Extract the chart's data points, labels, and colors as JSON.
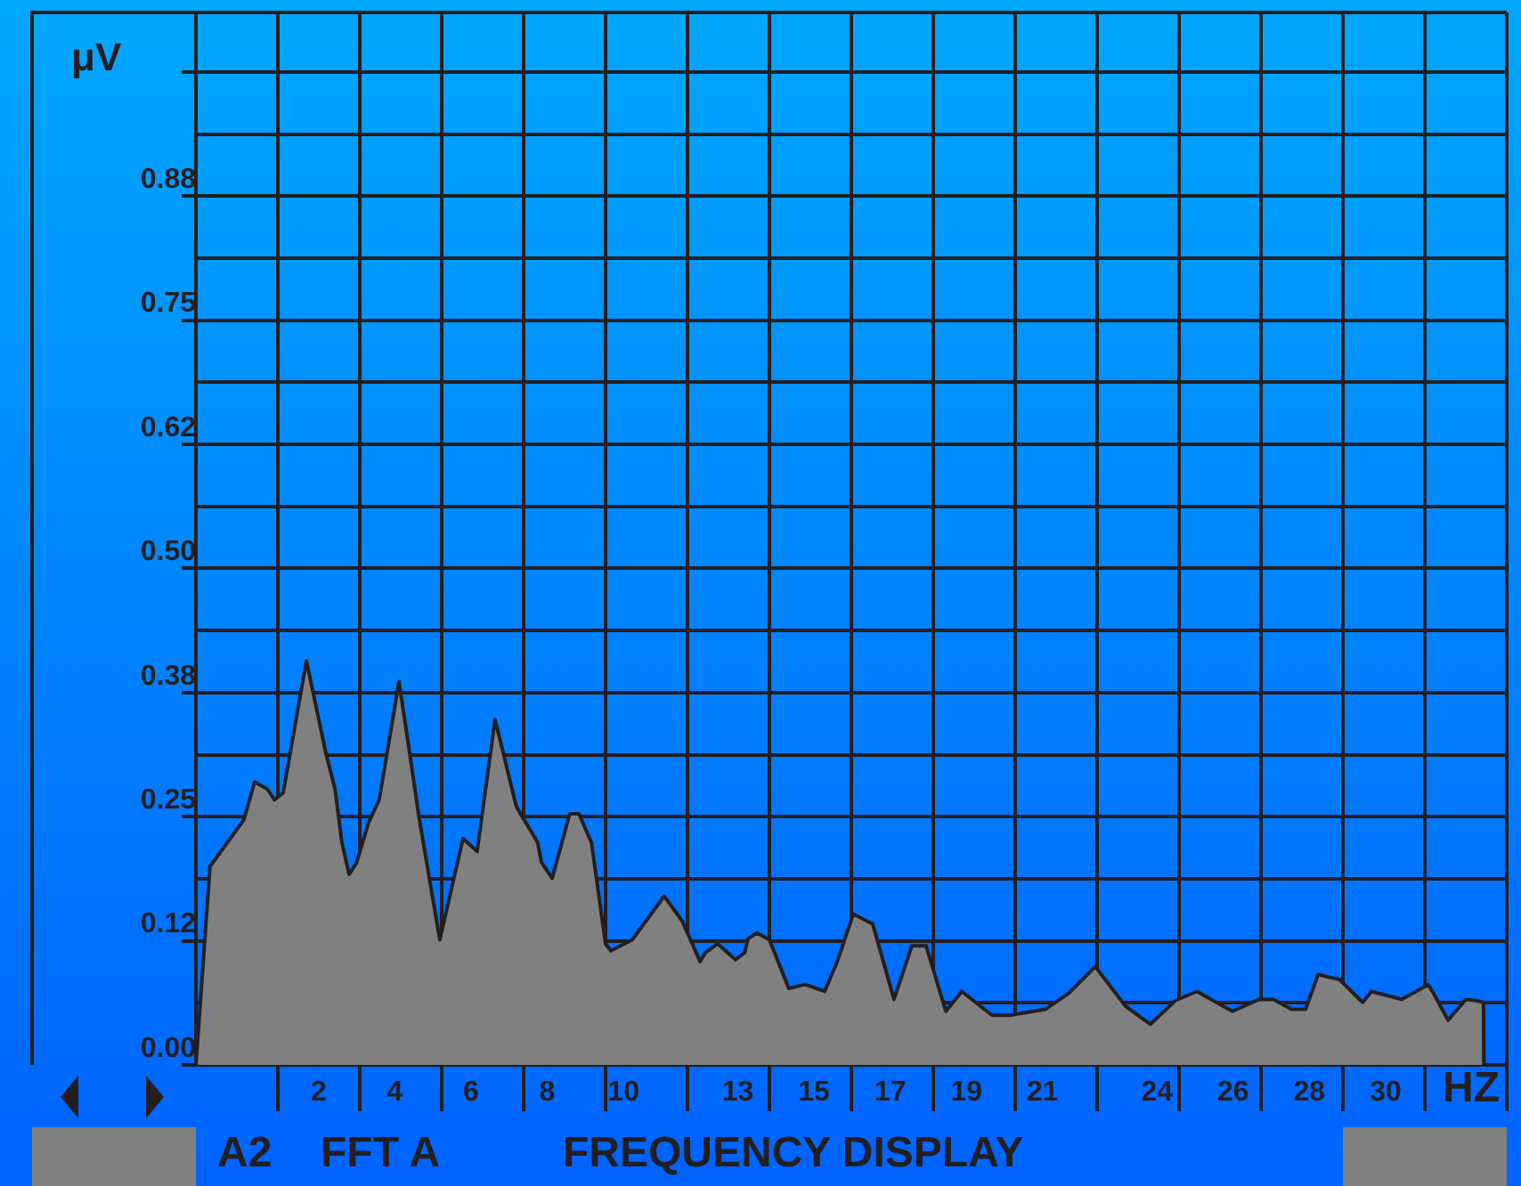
{
  "chart_data": {
    "type": "area",
    "ylabel": "μV",
    "xlabel": "HZ",
    "grid": true,
    "xlim": [
      -1.22,
      33.18
    ],
    "xticks": [
      {
        "value": 0.93,
        "label": null
      },
      2,
      {
        "value": 3.08,
        "label": null
      },
      4,
      {
        "value": 5.23,
        "label": null
      },
      6,
      {
        "value": 7.38,
        "label": null
      },
      8,
      {
        "value": 9.53,
        "label": null
      },
      10,
      {
        "value": 11.68,
        "label": null
      },
      13,
      {
        "value": 13.83,
        "label": null
      },
      15,
      {
        "value": 15.98,
        "label": null
      },
      17,
      {
        "value": 18.13,
        "label": null
      },
      19,
      {
        "value": 20.28,
        "label": null
      },
      21,
      {
        "value": 22.43,
        "label": null
      },
      24,
      {
        "value": 24.58,
        "label": null
      },
      26,
      {
        "value": 26.73,
        "label": null
      },
      28,
      {
        "value": 28.88,
        "label": null
      },
      30,
      {
        "value": 31.03,
        "label": null
      },
      {
        "value": 33.18,
        "label": null
      }
    ],
    "ylim": [
      0,
      1.06
    ],
    "yticks": [
      {
        "value": 0,
        "label": "0.00"
      },
      {
        "value": 0.0625,
        "label": null
      },
      {
        "value": 0.125,
        "label": "0.12"
      },
      {
        "value": 0.1875,
        "label": null
      },
      {
        "value": 0.25,
        "label": "0.25"
      },
      {
        "value": 0.3125,
        "label": null
      },
      {
        "value": 0.375,
        "label": "0.38"
      },
      {
        "value": 0.4375,
        "label": null
      },
      {
        "value": 0.5,
        "label": "0.50"
      },
      {
        "value": 0.5625,
        "label": null
      },
      {
        "value": 0.625,
        "label": "0.62"
      },
      {
        "value": 0.6875,
        "label": null
      },
      {
        "value": 0.75,
        "label": "0.75"
      },
      {
        "value": 0.8125,
        "label": null
      },
      {
        "value": 0.875,
        "label": "0.88"
      },
      {
        "value": 0.9375,
        "label": null
      },
      {
        "value": 1,
        "label": null
      }
    ],
    "series": [
      {
        "color": "#808080",
        "x": [
          -1.22,
          -0.85,
          0.04,
          0.32,
          0.65,
          0.84,
          1.07,
          1.68,
          2.19,
          2.43,
          2.61,
          2.8,
          2.99,
          3.31,
          3.59,
          4.11,
          4.39,
          4.62,
          5.18,
          5.79,
          6.16,
          6.63,
          7.19,
          7.33,
          7.75,
          7.85,
          8.13,
          8.59,
          8.83,
          9.16,
          9.53,
          9.67,
          10.23,
          11.07,
          11.54,
          12.01,
          12.15,
          12.47,
          12.94,
          13.18,
          13.27,
          13.5,
          13.83,
          14.34,
          14.76,
          15.28,
          15.61,
          16.03,
          16.54,
          17.1,
          17.57,
          17.94,
          18.46,
          18.88,
          19.67,
          20.14,
          21.07,
          21.68,
          22.38,
          23.18,
          23.83,
          24.49,
          25.05,
          25.98,
          26.68,
          27.06,
          27.53,
          27.9,
          28.23,
          28.79,
          29.4,
          29.63,
          30.42,
          31.12,
          31.26,
          31.64,
          32.11,
          32.34,
          32.57,
          32.58
        ],
        "values": [
          0,
          0.2,
          0.247,
          0.285,
          0.278,
          0.267,
          0.274,
          0.407,
          0.314,
          0.278,
          0.224,
          0.192,
          0.203,
          0.244,
          0.267,
          0.386,
          0.314,
          0.253,
          0.126,
          0.228,
          0.215,
          0.348,
          0.26,
          0.251,
          0.224,
          0.204,
          0.188,
          0.253,
          0.253,
          0.224,
          0.122,
          0.115,
          0.126,
          0.17,
          0.145,
          0.104,
          0.113,
          0.122,
          0.106,
          0.113,
          0.127,
          0.133,
          0.126,
          0.077,
          0.081,
          0.074,
          0.104,
          0.152,
          0.142,
          0.066,
          0.12,
          0.12,
          0.054,
          0.074,
          0.05,
          0.05,
          0.056,
          0.072,
          0.099,
          0.059,
          0.041,
          0.065,
          0.074,
          0.054,
          0.066,
          0.066,
          0.056,
          0.056,
          0.091,
          0.086,
          0.063,
          0.074,
          0.066,
          0.081,
          0.072,
          0.045,
          0.066,
          0.065,
          0.063,
          0
        ]
      }
    ],
    "annotations": [
      "A2",
      "FFT A",
      "FREQUENCY DISPLAY"
    ]
  }
}
